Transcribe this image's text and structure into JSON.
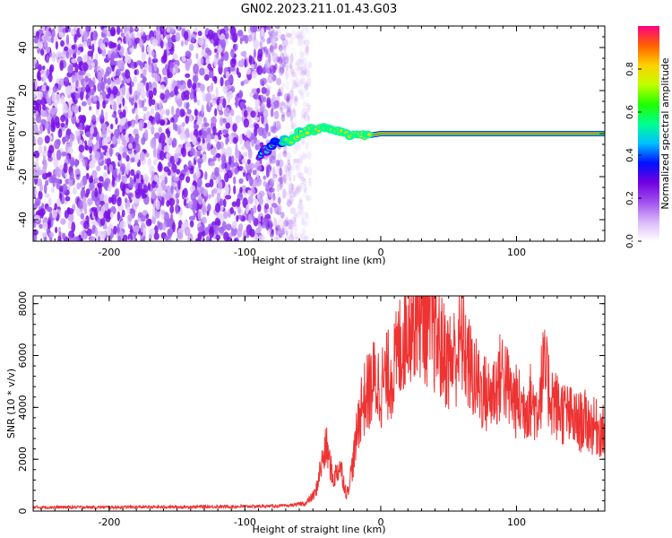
{
  "title": "GN02.2023.211.01.43.G03",
  "chart_data": [
    {
      "type": "heatmap",
      "name": "spectrogram",
      "xlabel": "Height of straight line (km)",
      "ylabel": "Frequency (Hz)",
      "xlim": [
        -256,
        165
      ],
      "ylim": [
        -50,
        50
      ],
      "x_ticks": [
        -200,
        -100,
        0,
        100
      ],
      "y_ticks": [
        -40,
        -20,
        0,
        20,
        40
      ],
      "x_tick_labels": [
        "-200",
        "-100",
        "0",
        "100"
      ],
      "y_tick_labels": [
        "-40",
        "-20",
        "0",
        "20",
        "40"
      ],
      "noise_region_x": [
        -256,
        -62
      ],
      "signal_ridge": [
        {
          "x": -90,
          "y": -11
        },
        {
          "x": -82,
          "y": -6
        },
        {
          "x": -75,
          "y": -3
        },
        {
          "x": -68,
          "y": -4
        },
        {
          "x": -60,
          "y": 0
        },
        {
          "x": -50,
          "y": 2
        },
        {
          "x": -40,
          "y": 3
        },
        {
          "x": -30,
          "y": 1
        },
        {
          "x": -20,
          "y": -1
        },
        {
          "x": -10,
          "y": -1
        },
        {
          "x": 0,
          "y": 0
        },
        {
          "x": 80,
          "y": 0
        },
        {
          "x": 165,
          "y": 0
        }
      ]
    },
    {
      "type": "line",
      "name": "snr",
      "xlabel": "Height of straight line (km)",
      "ylabel": "SNR (10 * v/v)",
      "xlim": [
        -256,
        165
      ],
      "ylim": [
        0,
        8300
      ],
      "x_ticks": [
        -200,
        -100,
        0,
        100
      ],
      "y_ticks": [
        0,
        2000,
        4000,
        6000,
        8000
      ],
      "x_tick_labels": [
        "-200",
        "-100",
        "0",
        "100"
      ],
      "y_tick_labels": [
        "0",
        "2000",
        "4000",
        "6000",
        "8000"
      ],
      "color": "#ee3333",
      "x": [
        -256,
        -200,
        -150,
        -100,
        -70,
        -55,
        -48,
        -45,
        -40,
        -35,
        -30,
        -25,
        -20,
        -15,
        -10,
        -5,
        0,
        5,
        10,
        15,
        20,
        25,
        30,
        35,
        40,
        45,
        50,
        55,
        60,
        65,
        70,
        75,
        80,
        85,
        90,
        95,
        100,
        105,
        110,
        115,
        120,
        125,
        130,
        135,
        140,
        145,
        150,
        155,
        160,
        165
      ],
      "values": [
        150,
        150,
        160,
        180,
        200,
        300,
        700,
        1500,
        2500,
        1200,
        1800,
        600,
        2000,
        4000,
        4500,
        5000,
        4800,
        5200,
        5500,
        6500,
        7500,
        7800,
        7600,
        7200,
        6800,
        6200,
        5800,
        6000,
        6600,
        5600,
        5000,
        4600,
        4400,
        4800,
        5400,
        4500,
        4200,
        4000,
        4300,
        3900,
        5400,
        4500,
        4000,
        3800,
        3600,
        3400,
        3500,
        3300,
        3200,
        3000
      ]
    }
  ],
  "colorbar": {
    "label": "Normalized spectral amplitude",
    "range": [
      0,
      1
    ],
    "ticks": [
      0,
      0.2,
      0.4,
      0.6,
      0.8
    ],
    "tick_labels": [
      "0.0",
      "0.2",
      "0.4",
      "0.6",
      "0.8"
    ],
    "colors": [
      "#ffffff",
      "#d8b8f8",
      "#a050f0",
      "#7000e0",
      "#0010ff",
      "#00c0ff",
      "#00ff90",
      "#20ff00",
      "#c0ff00",
      "#ffd000",
      "#ff6000",
      "#ff0080"
    ]
  }
}
